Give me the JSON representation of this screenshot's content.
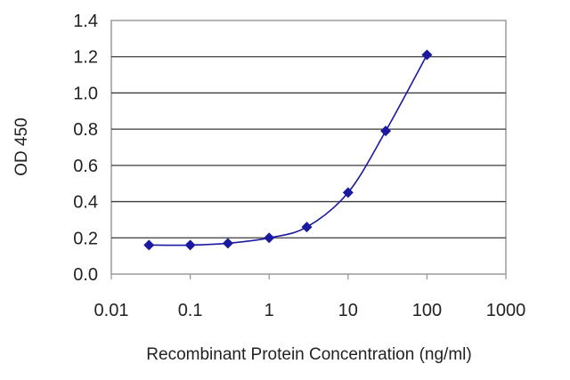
{
  "chart_data": {
    "type": "line",
    "xlabel": "Recombinant Protein Concentration (ng/ml)",
    "ylabel": "OD 450",
    "x_scale": "log",
    "xlim": [
      0.01,
      1000
    ],
    "ylim": [
      0.0,
      1.4
    ],
    "x_ticks": [
      "0.01",
      "0.1",
      "1",
      "10",
      "100",
      "1000"
    ],
    "y_ticks": [
      "0.0",
      "0.2",
      "0.4",
      "0.6",
      "0.8",
      "1.0",
      "1.2",
      "1.4"
    ],
    "grid": "horizontal",
    "legend": "none",
    "series": [
      {
        "color": "#1a1aa0",
        "marker": "diamond",
        "x": [
          0.03,
          0.1,
          0.3,
          1,
          3,
          10,
          30,
          100
        ],
        "y": [
          0.16,
          0.16,
          0.17,
          0.2,
          0.26,
          0.45,
          0.79,
          1.21
        ]
      }
    ]
  }
}
